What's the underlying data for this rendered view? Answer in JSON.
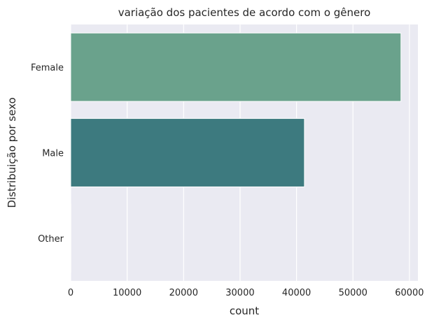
{
  "chart_data": {
    "type": "bar",
    "orientation": "horizontal",
    "title": "variação dos pacientes de acordo com o gênero",
    "xlabel": "count",
    "ylabel": "Distribuição por sexo",
    "categories": [
      "Female",
      "Male",
      "Other"
    ],
    "values": [
      58500,
      41400,
      18
    ],
    "xlim": [
      0,
      61500
    ],
    "xticks": [
      0,
      10000,
      20000,
      30000,
      40000,
      50000,
      60000
    ],
    "xtick_labels": [
      "0",
      "10000",
      "20000",
      "30000",
      "40000",
      "50000",
      "60000"
    ],
    "bar_colors": [
      "#6aa28c",
      "#3d7a7f",
      "#2a4a5a"
    ],
    "grid": true,
    "plot_background": "#eaeaf2",
    "grid_color": "#ffffff"
  }
}
